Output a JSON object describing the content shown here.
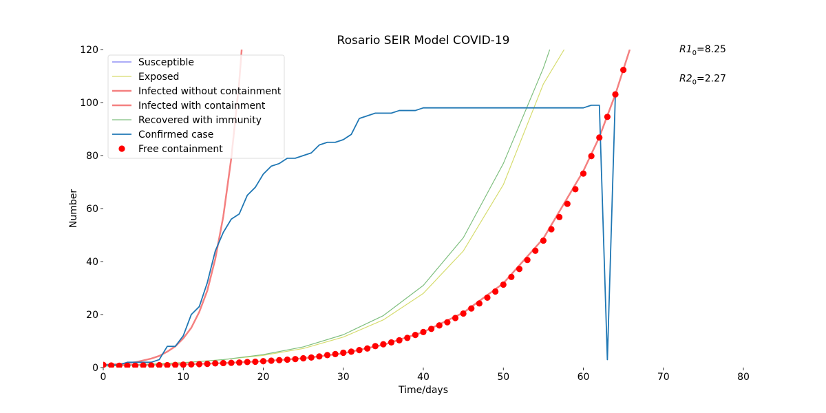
{
  "chart_data": {
    "type": "line",
    "title": "Rosario SEIR Model COVID-19",
    "xlabel": "Time/days",
    "ylabel": "Number",
    "xlim": [
      0,
      80
    ],
    "ylim": [
      0,
      120
    ],
    "x_ticks": [
      0,
      10,
      20,
      30,
      40,
      50,
      60,
      70,
      80
    ],
    "y_ticks": [
      0,
      20,
      40,
      60,
      80,
      100,
      120
    ],
    "grid": false,
    "legend_position": "top-left",
    "annotations": [
      {
        "prefix": "R1",
        "sub": "0",
        "suffix": "=8.25",
        "x": 72,
        "y": 120
      },
      {
        "prefix": "R2",
        "sub": "0",
        "suffix": "=2.27",
        "x": 72,
        "y": 109
      }
    ],
    "series": [
      {
        "name": "Susceptible",
        "kind": "line",
        "color": "#7b7bf2",
        "x": [],
        "y": []
      },
      {
        "name": "Exposed",
        "kind": "line",
        "color": "#d6dc6e",
        "x": [
          0,
          5,
          10,
          15,
          20,
          25,
          30,
          35,
          40,
          45,
          50,
          55,
          57.6
        ],
        "y": [
          0.9,
          1.2,
          1.9,
          3.0,
          4.6,
          7.2,
          11.5,
          18,
          28,
          44,
          69,
          107,
          120
        ]
      },
      {
        "name": "Infected without containment",
        "kind": "line",
        "color": "#f48080",
        "x": [
          0,
          2,
          4,
          6,
          7,
          8,
          9,
          10,
          11,
          12,
          13,
          14,
          15,
          16,
          17,
          17.3
        ],
        "y": [
          1,
          1.3,
          2.0,
          3.4,
          4.4,
          6.0,
          8.0,
          11.0,
          15.0,
          21.0,
          29.0,
          41.0,
          57.0,
          79.0,
          108.0,
          120.0
        ]
      },
      {
        "name": "Infected with containment",
        "kind": "line",
        "color": "#f48080",
        "x": [
          0,
          5,
          10,
          15,
          20,
          25,
          30,
          35,
          40,
          45,
          50,
          55,
          60,
          62,
          64,
          65.8
        ],
        "y": [
          1.0,
          1.0,
          1.2,
          1.7,
          2.4,
          3.5,
          5.4,
          8.6,
          13.4,
          20.7,
          31.8,
          48.7,
          74.2,
          87.0,
          103.1,
          120.0
        ]
      },
      {
        "name": "Recovered with immunity",
        "kind": "line",
        "color": "#7fbf7f",
        "x": [
          0,
          5,
          10,
          15,
          20,
          25,
          30,
          35,
          40,
          45,
          50,
          55,
          55.8
        ],
        "y": [
          0.5,
          1.0,
          1.8,
          3.0,
          4.9,
          7.8,
          12.4,
          19.6,
          31,
          49,
          77,
          113,
          120
        ]
      },
      {
        "name": "Confirmed case",
        "kind": "line",
        "color": "#1f77b4",
        "x": [
          0,
          1,
          2,
          3,
          4,
          5,
          6,
          7,
          8,
          9,
          10,
          11,
          12,
          13,
          14,
          15,
          16,
          17,
          18,
          19,
          20,
          21,
          22,
          23,
          24,
          25,
          26,
          27,
          28,
          29,
          30,
          31,
          32,
          33,
          34,
          35,
          36,
          37,
          38,
          39,
          40,
          41,
          42,
          43,
          44,
          45,
          46,
          47,
          48,
          49,
          50,
          51,
          52,
          53,
          54,
          55,
          56,
          57,
          58,
          59,
          60,
          61,
          62,
          63,
          64
        ],
        "y": [
          1,
          1,
          1,
          2,
          2,
          2,
          2,
          3,
          8,
          8,
          12,
          20,
          23,
          32,
          44,
          51,
          56,
          58,
          65,
          68,
          73,
          76,
          77,
          79,
          79,
          80,
          81,
          84,
          85,
          85,
          86,
          88,
          94,
          95,
          96,
          96,
          96,
          97,
          97,
          97,
          98,
          98,
          98,
          98,
          98,
          98,
          98,
          98,
          98,
          98,
          98,
          98,
          98,
          98,
          98,
          98,
          98,
          98,
          98,
          98,
          98,
          99,
          99,
          3,
          103
        ]
      },
      {
        "name": "Free containment",
        "kind": "scatter",
        "color": "#ff0000",
        "x": [
          0,
          1,
          2,
          3,
          4,
          5,
          6,
          7,
          8,
          9,
          10,
          11,
          12,
          13,
          14,
          15,
          16,
          17,
          18,
          19,
          20,
          21,
          22,
          23,
          24,
          25,
          26,
          27,
          28,
          29,
          30,
          31,
          32,
          33,
          34,
          35,
          36,
          37,
          38,
          39,
          40,
          41,
          42,
          43,
          44,
          45,
          46,
          47,
          48,
          49,
          50,
          51,
          52,
          53,
          54,
          55,
          56,
          57,
          58,
          59,
          60,
          61,
          62,
          63,
          64,
          65
        ],
        "y": [
          1.0,
          0.8,
          0.7,
          0.7,
          0.7,
          0.8,
          0.8,
          0.9,
          0.9,
          1.0,
          1.1,
          1.2,
          1.3,
          1.4,
          1.6,
          1.7,
          1.8,
          1.9,
          2.1,
          2.2,
          2.4,
          2.6,
          2.8,
          3.0,
          3.2,
          3.5,
          3.8,
          4.2,
          4.7,
          5.1,
          5.6,
          6.0,
          6.6,
          7.2,
          8.1,
          8.8,
          9.5,
          10.3,
          11.2,
          12.3,
          13.4,
          14.6,
          15.9,
          17.1,
          18.7,
          20.4,
          22.3,
          24.2,
          26.4,
          28.7,
          31.3,
          34.2,
          37.2,
          40.6,
          44.1,
          47.9,
          52.2,
          56.8,
          61.8,
          67.3,
          73.2,
          79.8,
          86.8,
          94.6,
          103.1,
          112.3
        ]
      }
    ]
  }
}
